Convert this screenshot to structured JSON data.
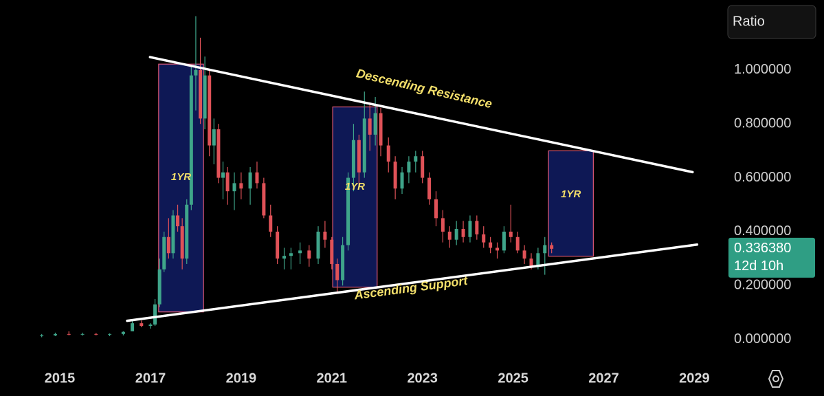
{
  "chart_data": {
    "type": "candlestick",
    "scale_button": "Ratio",
    "up_color": "#3fa58a",
    "down_color": "#e05258",
    "xlim": [
      2013.68,
      2029.6
    ],
    "xticks": [
      2015,
      2017,
      2019,
      2021,
      2023,
      2025,
      2027,
      2029
    ],
    "ylim": [
      -0.08,
      1.26
    ],
    "yticks": [
      {
        "value": 0,
        "label": "0.000000"
      },
      {
        "value": 0.2,
        "label": "0.200000"
      },
      {
        "value": 0.4,
        "label": "0.400000"
      },
      {
        "value": 0.6,
        "label": "0.600000"
      },
      {
        "value": 0.8,
        "label": "0.800000"
      },
      {
        "value": 1,
        "label": "1.000000"
      }
    ],
    "current": {
      "value": 0.33638,
      "label": "0.336380"
    },
    "countdown": "12d 10h",
    "x": [
      2014.6,
      2014.9,
      2015.2,
      2015.5,
      2015.8,
      2016.1,
      2016.4,
      2016.6,
      2016.8,
      2017.0,
      2017.1,
      2017.2,
      2017.3,
      2017.4,
      2017.5,
      2017.6,
      2017.7,
      2017.8,
      2017.9,
      2018.0,
      2018.1,
      2018.2,
      2018.3,
      2018.4,
      2018.5,
      2018.6,
      2018.7,
      2018.85,
      2019.0,
      2019.2,
      2019.35,
      2019.5,
      2019.65,
      2019.8,
      2019.95,
      2020.1,
      2020.3,
      2020.5,
      2020.7,
      2020.85,
      2021.0,
      2021.12,
      2021.24,
      2021.36,
      2021.48,
      2021.6,
      2021.72,
      2021.84,
      2021.96,
      2022.08,
      2022.25,
      2022.4,
      2022.55,
      2022.7,
      2022.85,
      2023.0,
      2023.15,
      2023.3,
      2023.45,
      2023.6,
      2023.75,
      2023.9,
      2024.05,
      2024.2,
      2024.35,
      2024.5,
      2024.65,
      2024.8,
      2024.95,
      2025.1,
      2025.25,
      2025.4,
      2025.55,
      2025.7,
      2025.85
    ],
    "open": [
      0.012,
      0.015,
      0.02,
      0.018,
      0.02,
      0.018,
      0.02,
      0.03,
      0.06,
      0.05,
      0.055,
      0.13,
      0.26,
      0.38,
      0.32,
      0.46,
      0.42,
      0.3,
      0.5,
      0.98,
      1.0,
      0.82,
      0.98,
      0.72,
      0.78,
      0.6,
      0.62,
      0.55,
      0.58,
      0.56,
      0.62,
      0.58,
      0.46,
      0.4,
      0.3,
      0.31,
      0.32,
      0.33,
      0.3,
      0.4,
      0.37,
      0.28,
      0.22,
      0.35,
      0.6,
      0.74,
      0.62,
      0.82,
      0.76,
      0.84,
      0.72,
      0.66,
      0.56,
      0.62,
      0.66,
      0.68,
      0.6,
      0.52,
      0.45,
      0.4,
      0.37,
      0.41,
      0.38,
      0.44,
      0.39,
      0.36,
      0.34,
      0.33,
      0.4,
      0.38,
      0.33,
      0.3,
      0.27,
      0.32,
      0.35
    ],
    "high": [
      0.02,
      0.025,
      0.03,
      0.025,
      0.024,
      0.022,
      0.03,
      0.07,
      0.07,
      0.06,
      0.15,
      0.3,
      0.4,
      0.45,
      0.48,
      0.5,
      0.45,
      0.52,
      1.02,
      1.2,
      1.12,
      1.05,
      1.0,
      0.82,
      0.8,
      0.66,
      0.64,
      0.62,
      0.62,
      0.64,
      0.66,
      0.6,
      0.5,
      0.42,
      0.34,
      0.34,
      0.36,
      0.35,
      0.42,
      0.44,
      0.38,
      0.3,
      0.38,
      0.62,
      0.8,
      0.76,
      0.92,
      0.88,
      0.9,
      0.86,
      0.75,
      0.68,
      0.64,
      0.68,
      0.7,
      0.7,
      0.62,
      0.55,
      0.48,
      0.42,
      0.44,
      0.44,
      0.46,
      0.46,
      0.42,
      0.38,
      0.36,
      0.42,
      0.5,
      0.4,
      0.35,
      0.32,
      0.34,
      0.38,
      0.36
    ],
    "low": [
      0.008,
      0.012,
      0.015,
      0.014,
      0.015,
      0.012,
      0.015,
      0.03,
      0.045,
      0.04,
      0.05,
      0.12,
      0.25,
      0.3,
      0.3,
      0.4,
      0.26,
      0.28,
      0.48,
      0.85,
      0.8,
      0.78,
      0.68,
      0.65,
      0.58,
      0.52,
      0.5,
      0.48,
      0.52,
      0.5,
      0.56,
      0.45,
      0.38,
      0.28,
      0.26,
      0.26,
      0.28,
      0.27,
      0.28,
      0.34,
      0.26,
      0.17,
      0.2,
      0.33,
      0.55,
      0.56,
      0.6,
      0.7,
      0.72,
      0.68,
      0.62,
      0.52,
      0.54,
      0.58,
      0.62,
      0.58,
      0.5,
      0.42,
      0.36,
      0.34,
      0.35,
      0.36,
      0.36,
      0.37,
      0.34,
      0.32,
      0.3,
      0.32,
      0.36,
      0.32,
      0.28,
      0.26,
      0.26,
      0.24,
      0.32
    ],
    "close": [
      0.015,
      0.02,
      0.018,
      0.02,
      0.018,
      0.02,
      0.028,
      0.06,
      0.05,
      0.055,
      0.13,
      0.26,
      0.38,
      0.32,
      0.46,
      0.42,
      0.3,
      0.5,
      0.98,
      1.0,
      0.82,
      0.98,
      0.72,
      0.78,
      0.6,
      0.62,
      0.55,
      0.58,
      0.56,
      0.62,
      0.58,
      0.46,
      0.4,
      0.3,
      0.31,
      0.32,
      0.33,
      0.3,
      0.4,
      0.37,
      0.28,
      0.22,
      0.35,
      0.6,
      0.74,
      0.62,
      0.82,
      0.76,
      0.84,
      0.72,
      0.66,
      0.56,
      0.62,
      0.66,
      0.68,
      0.6,
      0.52,
      0.45,
      0.4,
      0.37,
      0.41,
      0.38,
      0.44,
      0.39,
      0.36,
      0.34,
      0.33,
      0.4,
      0.38,
      0.33,
      0.3,
      0.27,
      0.32,
      0.35,
      0.33638
    ],
    "trendlines": [
      {
        "x": [
          2016.99,
          2028.96
        ],
        "y": [
          1.048,
          0.621
        ]
      },
      {
        "x": [
          2016.485,
          2029.06
        ],
        "y": [
          0.069,
          0.352
        ]
      }
    ],
    "boxes": [
      {
        "x": [
          2017.18,
          2018.17
        ],
        "y": [
          0.102,
          1.022
        ],
        "label": "1YR"
      },
      {
        "x": [
          2021.02,
          2022.0
        ],
        "y": [
          0.194,
          0.863
        ],
        "label": "1YR"
      },
      {
        "x": [
          2025.78,
          2026.77
        ],
        "y": [
          0.309,
          0.7
        ],
        "label": "1YR"
      }
    ],
    "annotations": [
      "Descending Resistance",
      "Ascending Support"
    ]
  }
}
